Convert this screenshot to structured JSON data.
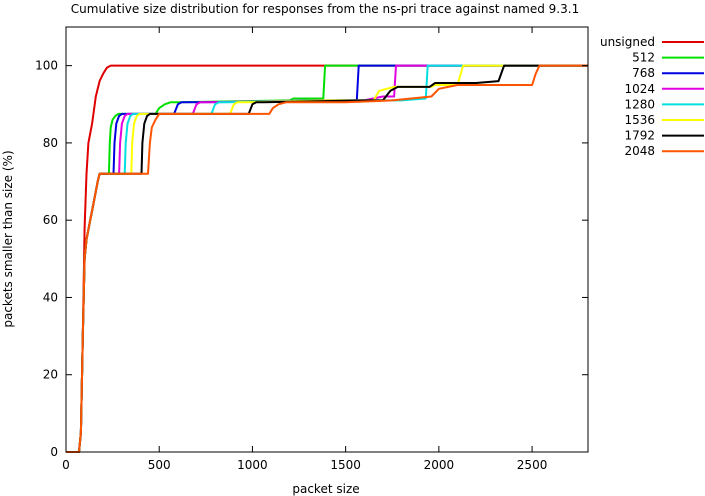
{
  "chart_data": {
    "type": "line",
    "title": "Cumulative size distribution for responses from the ns-pri trace against named 9.3.1",
    "xlabel": "packet size",
    "ylabel": "packets smaller than size (%)",
    "xlim": [
      0,
      2800
    ],
    "ylim": [
      0,
      110
    ],
    "xticks": [
      0,
      500,
      1000,
      1500,
      2000,
      2500
    ],
    "yticks": [
      0,
      20,
      40,
      60,
      80,
      100
    ],
    "grid": false,
    "legend_position": "outside-right-top",
    "series": [
      {
        "name": "unsigned",
        "color": "#e00000",
        "points": [
          [
            0,
            0
          ],
          [
            70,
            0
          ],
          [
            80,
            5
          ],
          [
            90,
            30
          ],
          [
            100,
            58
          ],
          [
            110,
            72
          ],
          [
            120,
            80
          ],
          [
            140,
            85
          ],
          [
            160,
            92
          ],
          [
            180,
            96
          ],
          [
            200,
            98
          ],
          [
            220,
            99.5
          ],
          [
            240,
            100
          ],
          [
            2800,
            100
          ]
        ]
      },
      {
        "name": "512",
        "color": "#00e000",
        "points": [
          [
            0,
            0
          ],
          [
            70,
            0
          ],
          [
            80,
            5
          ],
          [
            90,
            30
          ],
          [
            100,
            50
          ],
          [
            110,
            55
          ],
          [
            130,
            60
          ],
          [
            150,
            65
          ],
          [
            170,
            70
          ],
          [
            180,
            72
          ],
          [
            230,
            72
          ],
          [
            235,
            80
          ],
          [
            240,
            84
          ],
          [
            250,
            86
          ],
          [
            265,
            87
          ],
          [
            280,
            87.5
          ],
          [
            480,
            87.5
          ],
          [
            500,
            89
          ],
          [
            530,
            90
          ],
          [
            560,
            90.5
          ],
          [
            600,
            90.5
          ],
          [
            1200,
            91
          ],
          [
            1220,
            91.5
          ],
          [
            1380,
            91.5
          ],
          [
            1390,
            100
          ],
          [
            2800,
            100
          ]
        ]
      },
      {
        "name": "768",
        "color": "#0000e0",
        "points": [
          [
            0,
            0
          ],
          [
            70,
            0
          ],
          [
            80,
            5
          ],
          [
            90,
            30
          ],
          [
            100,
            50
          ],
          [
            110,
            55
          ],
          [
            130,
            60
          ],
          [
            150,
            65
          ],
          [
            170,
            70
          ],
          [
            180,
            72
          ],
          [
            255,
            72
          ],
          [
            260,
            80
          ],
          [
            270,
            85
          ],
          [
            285,
            87
          ],
          [
            300,
            87.5
          ],
          [
            580,
            87.5
          ],
          [
            600,
            90
          ],
          [
            620,
            90.5
          ],
          [
            660,
            90.5
          ],
          [
            1300,
            90.7
          ],
          [
            1320,
            91
          ],
          [
            1560,
            91
          ],
          [
            1570,
            100
          ],
          [
            2800,
            100
          ]
        ]
      },
      {
        "name": "1024",
        "color": "#e000e0",
        "points": [
          [
            0,
            0
          ],
          [
            70,
            0
          ],
          [
            80,
            5
          ],
          [
            90,
            30
          ],
          [
            100,
            50
          ],
          [
            110,
            55
          ],
          [
            130,
            60
          ],
          [
            150,
            65
          ],
          [
            170,
            70
          ],
          [
            180,
            72
          ],
          [
            285,
            72
          ],
          [
            290,
            80
          ],
          [
            300,
            85
          ],
          [
            315,
            87
          ],
          [
            330,
            87.5
          ],
          [
            680,
            87.5
          ],
          [
            700,
            90
          ],
          [
            720,
            90.5
          ],
          [
            760,
            90.5
          ],
          [
            1350,
            91
          ],
          [
            1600,
            91
          ],
          [
            1700,
            92
          ],
          [
            1760,
            92
          ],
          [
            1770,
            100
          ],
          [
            2800,
            100
          ]
        ]
      },
      {
        "name": "1280",
        "color": "#00e0e0",
        "points": [
          [
            0,
            0
          ],
          [
            70,
            0
          ],
          [
            80,
            5
          ],
          [
            90,
            30
          ],
          [
            100,
            50
          ],
          [
            110,
            55
          ],
          [
            130,
            60
          ],
          [
            150,
            65
          ],
          [
            170,
            70
          ],
          [
            180,
            72
          ],
          [
            315,
            72
          ],
          [
            320,
            80
          ],
          [
            330,
            85
          ],
          [
            345,
            87
          ],
          [
            360,
            87.5
          ],
          [
            780,
            87.5
          ],
          [
            800,
            90
          ],
          [
            820,
            90.5
          ],
          [
            860,
            90.5
          ],
          [
            1400,
            91
          ],
          [
            1700,
            91
          ],
          [
            1800,
            91
          ],
          [
            1930,
            91.5
          ],
          [
            1940,
            100
          ],
          [
            2800,
            100
          ]
        ]
      },
      {
        "name": "1536",
        "color": "#ffff00",
        "points": [
          [
            0,
            0
          ],
          [
            70,
            0
          ],
          [
            80,
            5
          ],
          [
            90,
            30
          ],
          [
            100,
            50
          ],
          [
            110,
            55
          ],
          [
            130,
            60
          ],
          [
            150,
            65
          ],
          [
            170,
            70
          ],
          [
            180,
            72
          ],
          [
            350,
            72
          ],
          [
            355,
            80
          ],
          [
            365,
            85
          ],
          [
            380,
            87
          ],
          [
            395,
            87.5
          ],
          [
            880,
            87.5
          ],
          [
            900,
            90
          ],
          [
            920,
            90.5
          ],
          [
            960,
            90.5
          ],
          [
            1400,
            91
          ],
          [
            1650,
            91
          ],
          [
            1680,
            93.5
          ],
          [
            1720,
            94
          ],
          [
            1760,
            94.5
          ],
          [
            1960,
            94.5
          ],
          [
            1980,
            95
          ],
          [
            2100,
            95
          ],
          [
            2130,
            100
          ],
          [
            2800,
            100
          ]
        ]
      },
      {
        "name": "1792",
        "color": "#000000",
        "points": [
          [
            0,
            0
          ],
          [
            70,
            0
          ],
          [
            80,
            5
          ],
          [
            90,
            30
          ],
          [
            100,
            50
          ],
          [
            110,
            55
          ],
          [
            130,
            60
          ],
          [
            150,
            65
          ],
          [
            170,
            70
          ],
          [
            180,
            72
          ],
          [
            405,
            72
          ],
          [
            410,
            80
          ],
          [
            420,
            85
          ],
          [
            435,
            87
          ],
          [
            450,
            87.5
          ],
          [
            980,
            87.5
          ],
          [
            1000,
            90
          ],
          [
            1020,
            90.5
          ],
          [
            1060,
            90.5
          ],
          [
            1600,
            91
          ],
          [
            1700,
            91
          ],
          [
            1740,
            93.5
          ],
          [
            1780,
            94.5
          ],
          [
            1950,
            94.5
          ],
          [
            1980,
            95.5
          ],
          [
            2160,
            95.5
          ],
          [
            2200,
            95.5
          ],
          [
            2320,
            96
          ],
          [
            2350,
            100
          ],
          [
            2800,
            100
          ]
        ]
      },
      {
        "name": "2048",
        "color": "#ff5500",
        "points": [
          [
            0,
            0
          ],
          [
            70,
            0
          ],
          [
            80,
            5
          ],
          [
            90,
            30
          ],
          [
            100,
            50
          ],
          [
            110,
            55
          ],
          [
            130,
            60
          ],
          [
            150,
            65
          ],
          [
            170,
            70
          ],
          [
            180,
            72
          ],
          [
            440,
            72
          ],
          [
            450,
            80
          ],
          [
            460,
            84
          ],
          [
            480,
            86
          ],
          [
            500,
            87.5
          ],
          [
            1090,
            87.5
          ],
          [
            1110,
            89
          ],
          [
            1140,
            90
          ],
          [
            1180,
            90.5
          ],
          [
            1500,
            90.5
          ],
          [
            1750,
            91
          ],
          [
            1960,
            92
          ],
          [
            2000,
            94
          ],
          [
            2100,
            95
          ],
          [
            2500,
            95
          ],
          [
            2520,
            98
          ],
          [
            2540,
            100
          ],
          [
            2800,
            100
          ]
        ]
      }
    ]
  }
}
